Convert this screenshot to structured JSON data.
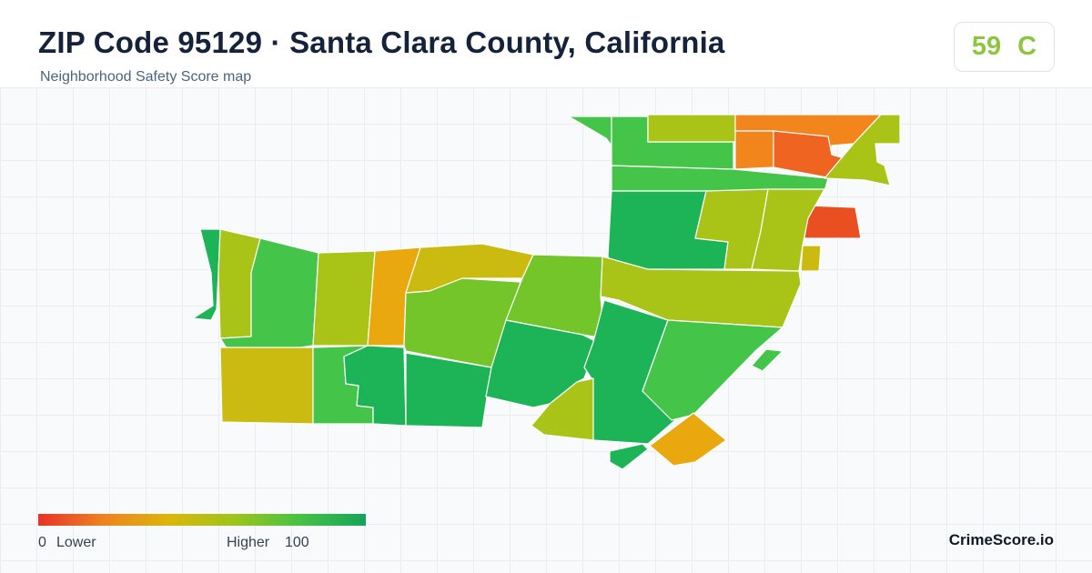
{
  "header": {
    "title": "ZIP Code 95129 · Santa Clara County, California",
    "subtitle": "Neighborhood Safety Score map"
  },
  "score": {
    "value": "59",
    "grade": "C",
    "color": "#8cc63f"
  },
  "legend": {
    "min_value": "0",
    "min_label": "Lower",
    "max_label": "Higher",
    "max_value": "100",
    "gradient_colors": [
      "#e8322a",
      "#ee8320",
      "#dcb60a",
      "#9cc51a",
      "#45c244",
      "#16a35a"
    ]
  },
  "brand": "CrimeScore.io",
  "palette": {
    "red": "#ea4f22",
    "red_orange": "#ee6420",
    "orange": "#f2851c",
    "amber": "#eaa80f",
    "olive_yellow": "#cbba0f",
    "yellow_green": "#a9c417",
    "lime": "#73c52a",
    "green": "#44c54a",
    "deep_green": "#1db457"
  }
}
